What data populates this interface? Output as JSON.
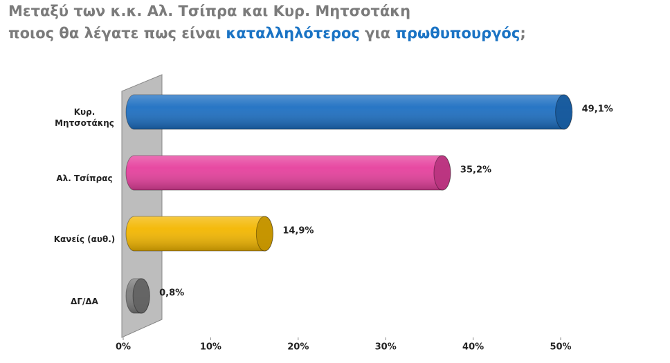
{
  "chart_data": {
    "type": "bar",
    "orientation": "horizontal",
    "title_lines": [
      [
        {
          "text": "Μεταξύ των κ.κ. Αλ. Τσίπρα και Κυρ. Μητσοτάκη",
          "color": "#7b7b7b"
        }
      ],
      [
        {
          "text": "ποιος θα λέγατε πως είναι ",
          "color": "#7b7b7b"
        },
        {
          "text": "καταλληλότερος",
          "color": "#1a73c4"
        },
        {
          "text": " για ",
          "color": "#7b7b7b"
        },
        {
          "text": "πρωθυπουργός",
          "color": "#1a73c4"
        },
        {
          "text": ";",
          "color": "#7b7b7b"
        }
      ]
    ],
    "categories": [
      "Κυρ. Μητσοτάκης",
      "Αλ. Τσίπρας",
      "Κανείς (αυθ.)",
      "ΔΓ/ΔΑ"
    ],
    "values": [
      49.1,
      35.2,
      14.9,
      0.8
    ],
    "value_labels": [
      "49,1%",
      "35,2%",
      "14,9%",
      "0,8%"
    ],
    "colors": [
      "#1d6fc2",
      "#e6409d",
      "#f3b700",
      "#7a7a7a"
    ],
    "xlim": [
      0,
      50
    ],
    "xticks": [
      {
        "value": 0,
        "label": "0%"
      },
      {
        "value": 10,
        "label": "10%"
      },
      {
        "value": 20,
        "label": "20%"
      },
      {
        "value": 30,
        "label": "30%"
      },
      {
        "value": 40,
        "label": "40%"
      },
      {
        "value": 50,
        "label": "50%"
      }
    ]
  }
}
